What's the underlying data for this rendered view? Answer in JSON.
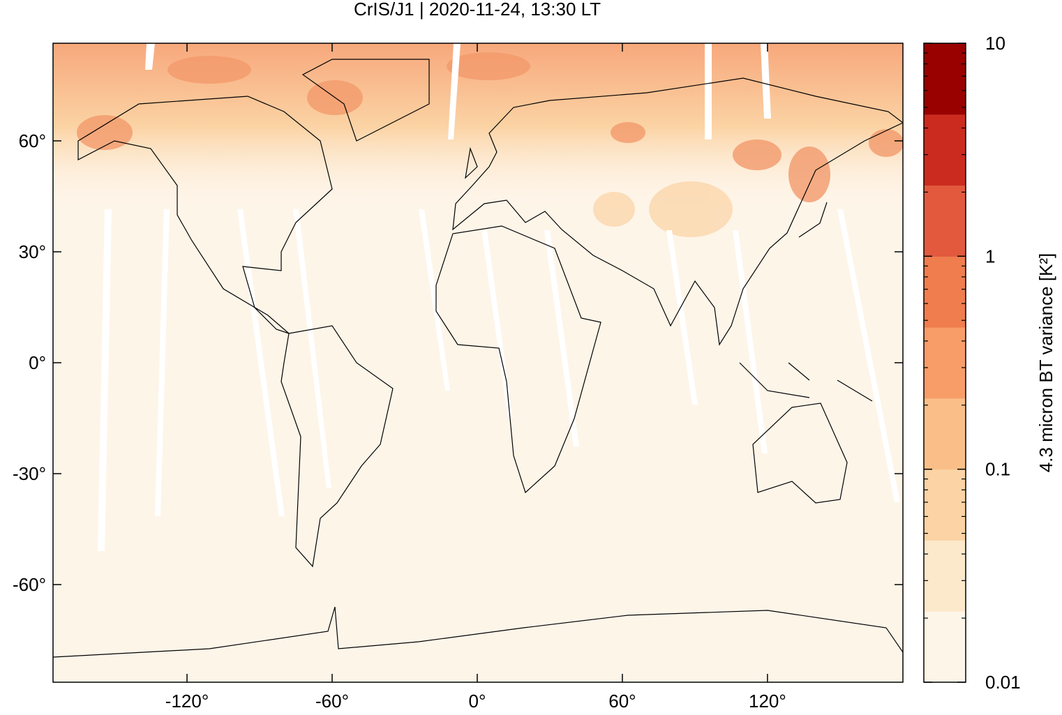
{
  "chart_data": {
    "type": "map",
    "title": "CrIS/J1 | 2020-11-24, 13:30 LT",
    "xlim": [
      -175.4,
      176
    ],
    "ylim": [
      -86.4,
      86.4
    ],
    "xticks": [
      {
        "value": -120,
        "label": "-120°"
      },
      {
        "value": -60,
        "label": "-60°"
      },
      {
        "value": 0,
        "label": "0°"
      },
      {
        "value": 60,
        "label": "60°"
      },
      {
        "value": 120,
        "label": "120°"
      }
    ],
    "yticks": [
      {
        "value": -60,
        "label": "-60°"
      },
      {
        "value": -30,
        "label": "-30°"
      },
      {
        "value": 0,
        "label": "0°"
      },
      {
        "value": 30,
        "label": "30°"
      },
      {
        "value": 60,
        "label": "60°"
      }
    ],
    "colorbar": {
      "label": "4.3 micron BT variance [K²]",
      "log": true,
      "lim": [
        0.01,
        10
      ],
      "ticks": [
        0.01,
        0.1,
        1,
        10
      ],
      "colors": [
        "#fef5e9",
        "#fce8ca",
        "#fbd3a4",
        "#fabf88",
        "#f89d68",
        "#ef7d4e",
        "#e2593e",
        "#cb2b1f",
        "#990000"
      ]
    }
  }
}
